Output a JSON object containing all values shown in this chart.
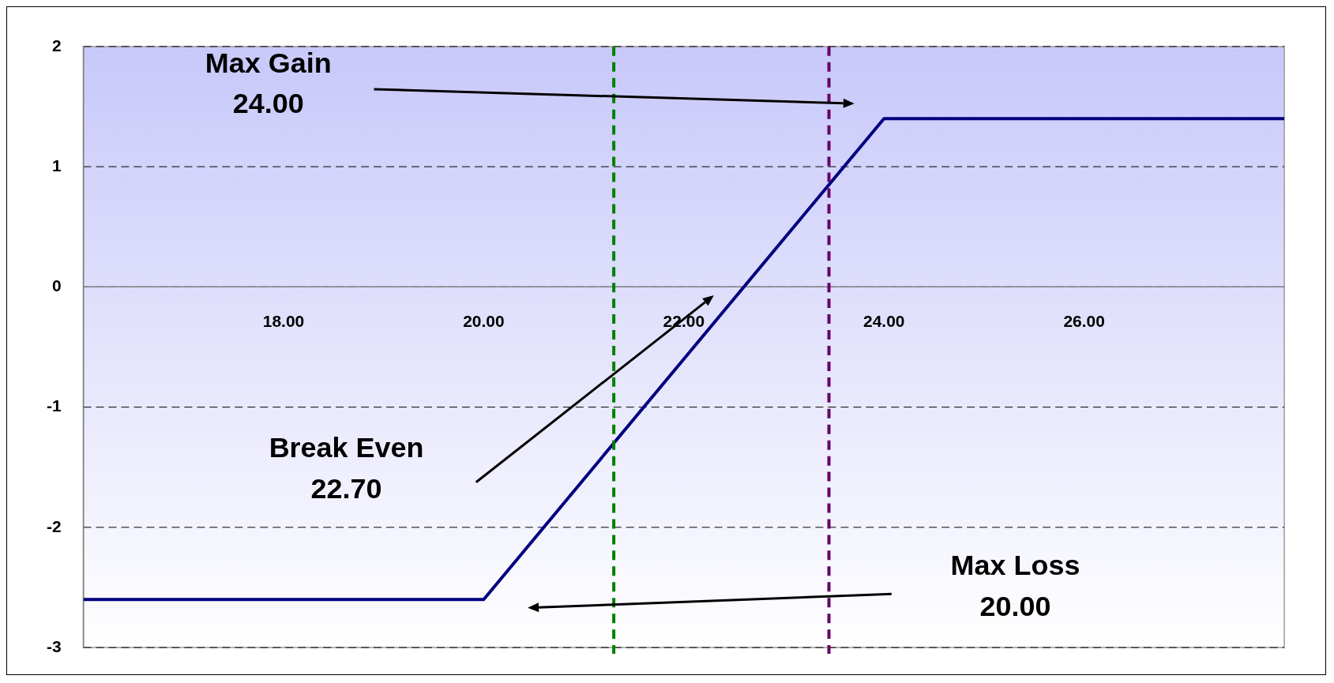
{
  "chart_data": {
    "type": "line",
    "x": [
      16,
      20,
      24,
      28
    ],
    "series": [
      {
        "color": "#000080",
        "values": [
          -2.6,
          -2.6,
          1.4,
          1.4
        ]
      }
    ],
    "xlim": [
      16,
      28
    ],
    "xticks": [
      {
        "value": 18,
        "label": "18.00"
      },
      {
        "value": 20,
        "label": "20.00"
      },
      {
        "value": 22,
        "label": "22.00"
      },
      {
        "value": 24,
        "label": "24.00"
      },
      {
        "value": 26,
        "label": "26.00"
      }
    ],
    "ylim": [
      -3,
      2
    ],
    "yticks": [
      -3,
      -2,
      -1,
      0,
      1,
      2
    ],
    "grid": "y",
    "legend": false,
    "marker": "none",
    "line_style": "solid",
    "ref_lines": [
      {
        "axis": "x",
        "value": 21.3,
        "color": "#008000",
        "line_style": "dashed"
      },
      {
        "axis": "x",
        "value": 23.45,
        "color": "#660066",
        "line_style": "dashed"
      }
    ],
    "annotations": [
      "Max Gain\n24.00",
      "Break Even\n22.70",
      "Max Loss\n20.00"
    ]
  }
}
